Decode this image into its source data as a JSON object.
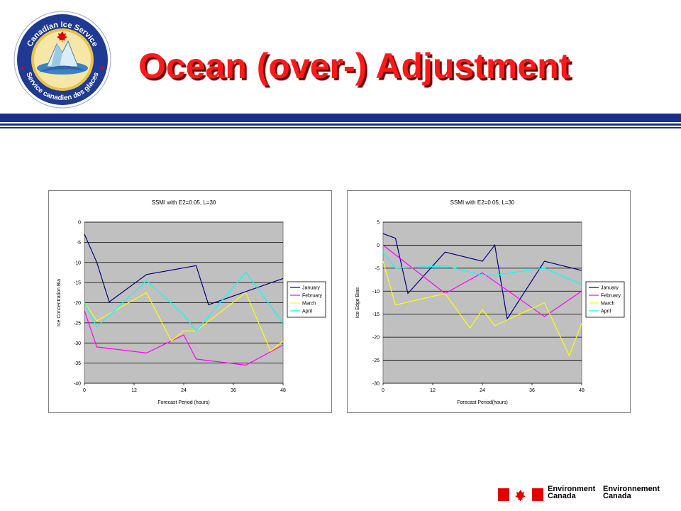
{
  "slide": {
    "title": "Ocean (over-) Adjustment"
  },
  "logo": {
    "text_top": "Canadian Ice Service",
    "text_bottom": "Service canadien des glaces"
  },
  "footer": {
    "line1_en": "Environment",
    "line2_en": "Canada",
    "line1_fr": "Environnement",
    "line2_fr": "Canada"
  },
  "colors": {
    "title": "#ff1a1a",
    "rule": "#1c2e8c",
    "plot_bg": "#c0c0c0",
    "january": "#000080",
    "february": "#ff00ff",
    "march": "#ffff00",
    "april": "#00ffff"
  },
  "chart_data": [
    {
      "type": "line",
      "title": "SSMI with E2=0.05, L=30",
      "xlabel": "Forecast Period (hours)",
      "ylabel": "Ice Concentration Bia",
      "xlim": [
        0,
        48
      ],
      "ylim": [
        -40,
        0
      ],
      "xticks": [
        0,
        12,
        24,
        36,
        48
      ],
      "yticks": [
        0,
        -5,
        -10,
        -15,
        -20,
        -25,
        -30,
        -35,
        -40
      ],
      "grid": true,
      "legend": "right",
      "series": [
        {
          "name": "January",
          "color": "#000080",
          "x": [
            0,
            3,
            6,
            15,
            27,
            30,
            48
          ],
          "y": [
            -3,
            -10,
            -19.8,
            -13,
            -10.8,
            -20.5,
            -14
          ]
        },
        {
          "name": "February",
          "color": "#ff00ff",
          "x": [
            0,
            3,
            15,
            24,
            27,
            39,
            48
          ],
          "y": [
            -22,
            -31,
            -32.5,
            -28,
            -34,
            -35.5,
            -30.5
          ]
        },
        {
          "name": "March",
          "color": "#ffff00",
          "x": [
            0,
            3,
            15,
            21,
            24,
            27,
            39,
            45,
            48
          ],
          "y": [
            -20,
            -24.5,
            -17.5,
            -29.5,
            -27,
            -27,
            -17.5,
            -32,
            -29.5
          ]
        },
        {
          "name": "April",
          "color": "#00ffff",
          "x": [
            0,
            3,
            15,
            24,
            27,
            39,
            48
          ],
          "y": [
            -20,
            -26,
            -14.5,
            -23,
            -27,
            -12.5,
            -25
          ]
        }
      ]
    },
    {
      "type": "line",
      "title": "SSMI with E2=0.05, L=30",
      "xlabel": "Forecast Period(hours)",
      "ylabel": "Ice Edge Bias",
      "xlim": [
        0,
        48
      ],
      "ylim": [
        -30,
        5
      ],
      "xticks": [
        0,
        12,
        24,
        36,
        48
      ],
      "yticks": [
        5,
        0,
        -5,
        -10,
        -15,
        -20,
        -25,
        -30
      ],
      "grid": true,
      "legend": "right",
      "series": [
        {
          "name": "January",
          "color": "#000080",
          "x": [
            0,
            3,
            6,
            15,
            24,
            27,
            30,
            39,
            48
          ],
          "y": [
            2.5,
            1.5,
            -10.5,
            -1.5,
            -3.5,
            0,
            -16,
            -3.5,
            -5.5
          ]
        },
        {
          "name": "February",
          "color": "#ff00ff",
          "x": [
            0,
            15,
            24,
            39,
            48
          ],
          "y": [
            0,
            -10.5,
            -6,
            -15.5,
            -10
          ]
        },
        {
          "name": "March",
          "color": "#ffff00",
          "x": [
            0,
            3,
            15,
            21,
            24,
            27,
            39,
            45,
            48
          ],
          "y": [
            -3.5,
            -13,
            -10.5,
            -18,
            -14,
            -17.5,
            -12.5,
            -24,
            -17
          ]
        },
        {
          "name": "April",
          "color": "#00ffff",
          "x": [
            0,
            3,
            15,
            24,
            27,
            39,
            48
          ],
          "y": [
            -1.5,
            -5,
            -4.5,
            -6.5,
            -6.5,
            -5,
            -8.5
          ]
        }
      ]
    }
  ]
}
